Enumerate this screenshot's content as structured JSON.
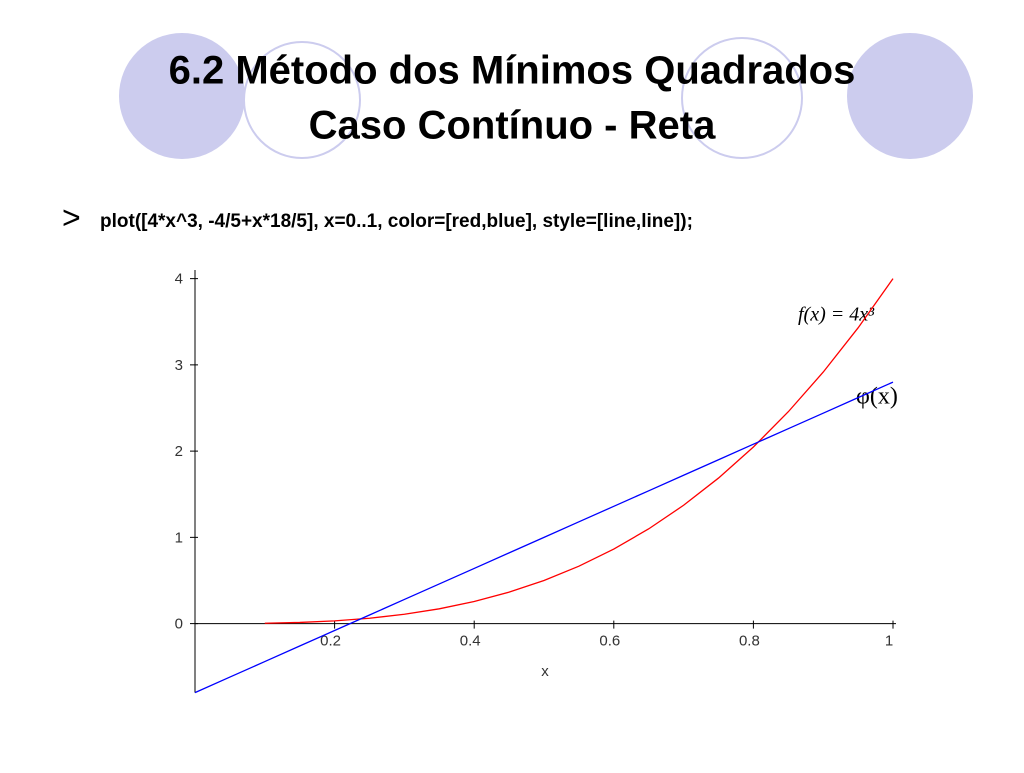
{
  "slide": {
    "title_lines": [
      "6.2 Método dos Mínimos Quadrados",
      "Caso Contínuo - Reta"
    ],
    "prompt": ">",
    "command": "plot([4*x^3, -4/5+x*18/5], x=0..1, color=[red,blue], style=[line,line]);"
  },
  "chart_data": {
    "type": "line",
    "x_label": "x",
    "x": [
      0,
      0.05,
      0.1,
      0.15,
      0.2,
      0.25,
      0.3,
      0.35,
      0.4,
      0.45,
      0.5,
      0.55,
      0.6,
      0.65,
      0.7,
      0.75,
      0.8,
      0.85,
      0.9,
      0.95,
      1
    ],
    "series": [
      {
        "color": "#ff0000",
        "values": [
          null,
          null,
          0.004,
          0.0135,
          0.032,
          0.0625,
          0.108,
          0.1715,
          0.256,
          0.3645,
          0.5,
          0.6655,
          0.864,
          1.0985,
          1.372,
          1.6875,
          2.048,
          2.4565,
          2.916,
          3.4295,
          4
        ]
      },
      {
        "color": "#0000ff",
        "values": [
          -0.8,
          -0.62,
          -0.44,
          -0.26,
          -0.08,
          0.1,
          0.28,
          0.46,
          0.64,
          0.82,
          1.0,
          1.18,
          1.36,
          1.54,
          1.72,
          1.9,
          2.08,
          2.26,
          2.44,
          2.62,
          2.8
        ]
      }
    ],
    "annotations": [
      "f(x) = 4x³",
      "φ(x)"
    ],
    "xlim": [
      0,
      1
    ],
    "ylim": [
      -0.8,
      4.1
    ],
    "xticks": [
      0.2,
      0.4,
      0.6,
      0.8,
      1
    ],
    "yticks": [
      0,
      1,
      2,
      3,
      4
    ]
  }
}
